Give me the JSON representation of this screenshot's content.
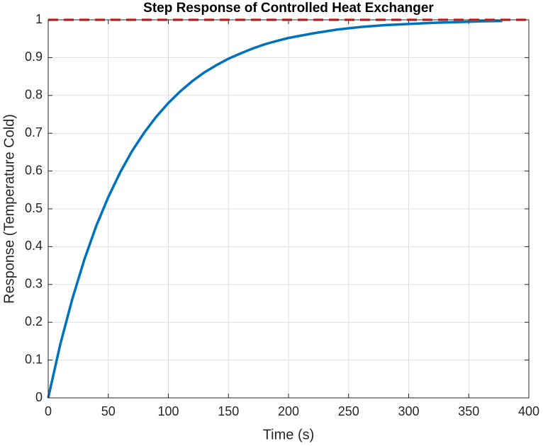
{
  "chart_data": {
    "type": "line",
    "title": "Step Response of Controlled Heat Exchanger",
    "x_label": "Time (s)",
    "y_label": "Response (Temperature Cold)",
    "series": [
      {
        "color": "#0072bd",
        "line_style": "solid",
        "x": [
          0,
          10,
          20,
          30,
          40,
          50,
          60,
          70,
          80,
          90,
          100,
          110,
          120,
          130,
          140,
          150,
          160,
          170,
          180,
          190,
          200,
          220,
          240,
          260,
          280,
          300,
          320,
          340,
          360,
          378
        ],
        "values": [
          0,
          0.141,
          0.261,
          0.365,
          0.455,
          0.531,
          0.597,
          0.654,
          0.702,
          0.744,
          0.78,
          0.811,
          0.838,
          0.861,
          0.88,
          0.897,
          0.911,
          0.924,
          0.935,
          0.944,
          0.952,
          0.964,
          0.974,
          0.981,
          0.986,
          0.989,
          0.992,
          0.994,
          0.996,
          0.997
        ]
      },
      {
        "color": "#f03535",
        "line_style": "dashed",
        "x": [
          0,
          400
        ],
        "values": [
          1,
          1
        ]
      }
    ],
    "xlim": [
      0,
      400
    ],
    "xticks": [
      0,
      50,
      100,
      150,
      200,
      250,
      300,
      350,
      400
    ],
    "ylim": [
      0,
      1
    ],
    "yticks": [
      0,
      0.1,
      0.2,
      0.3,
      0.4,
      0.5,
      0.6,
      0.7,
      0.8,
      0.9,
      1
    ],
    "grid": true
  }
}
